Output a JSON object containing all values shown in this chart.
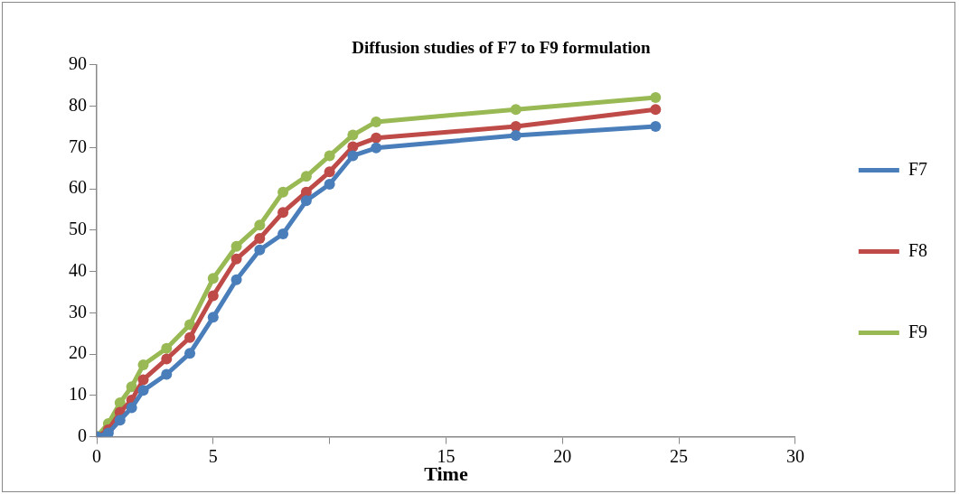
{
  "chart_data": {
    "type": "line",
    "title": "Diffusion studies of F7 to F9 formulation",
    "xlabel": "Time",
    "x": [
      0,
      0.5,
      1,
      1.5,
      2,
      3,
      4,
      5,
      6,
      7,
      8,
      9,
      10,
      11,
      12,
      18,
      24
    ],
    "series": [
      {
        "name": "F7",
        "color": "#4a7ebb",
        "values": [
          0,
          0.9,
          4,
          7,
          11.2,
          15.1,
          20.2,
          28.9,
          38,
          45.2,
          49.1,
          57.1,
          61.1,
          68,
          69.9,
          72.9,
          75.1
        ]
      },
      {
        "name": "F8",
        "color": "#be4b48",
        "values": [
          0,
          1.7,
          5.9,
          8.9,
          13.8,
          18.8,
          24,
          34.1,
          43,
          48,
          54.3,
          59.2,
          64.1,
          70.2,
          72.3,
          75.1,
          79.2
        ]
      },
      {
        "name": "F9",
        "color": "#98b954",
        "values": [
          0,
          3.2,
          8.2,
          12.1,
          17.4,
          21.4,
          27.1,
          38.3,
          46.1,
          51.2,
          59.2,
          63,
          68,
          73,
          76.2,
          79.2,
          82.1
        ]
      }
    ],
    "xlim": [
      0,
      30
    ],
    "xticks": [
      0,
      5,
      {
        "value": 10,
        "label": null
      },
      15,
      20,
      25,
      30
    ],
    "ylim": [
      0,
      90
    ],
    "yticks": [
      0,
      10,
      20,
      30,
      40,
      50,
      60,
      70,
      80,
      90
    ],
    "grid": false,
    "legend": "right",
    "marker": "circle",
    "line_style": "solid"
  }
}
